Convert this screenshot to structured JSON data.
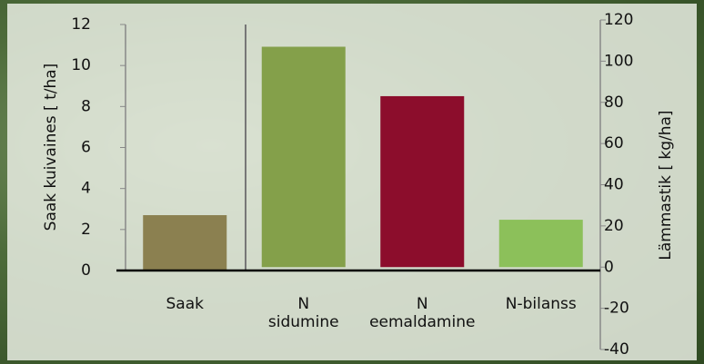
{
  "chart_data": {
    "type": "bar",
    "categories": [
      "Saak",
      "N\nsidumine",
      "N\neemaldamine",
      "N-bilanss"
    ],
    "values": [
      2.7,
      107,
      83,
      23
    ],
    "axes": [
      "y",
      "y2",
      "y2",
      "y2"
    ],
    "colors": [
      "#8b8050",
      "#84a04a",
      "#8c0d2c",
      "#8cc05a"
    ],
    "ylabel": "Saak kuivaines [ t/ha]",
    "y2label": "Lämmastik [ kg/ha]",
    "ylim": [
      0,
      12
    ],
    "yticks": [
      0,
      2,
      4,
      6,
      8,
      10,
      12
    ],
    "y2lim": [
      -40,
      120
    ],
    "y2ticks": [
      -40,
      -20,
      0,
      20,
      40,
      60,
      80,
      100,
      120
    ]
  }
}
